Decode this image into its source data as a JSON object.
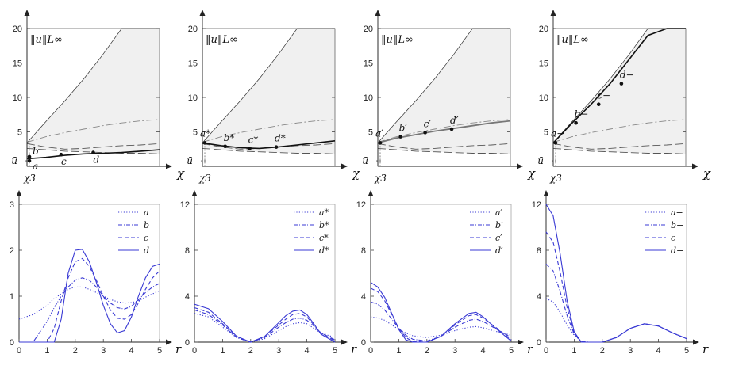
{
  "figure": {
    "top_norm_label": "‖u‖L∞",
    "chi_label": "χ",
    "chi3_label": "χ3",
    "ubar_label": "ū",
    "r_label": "r"
  },
  "chart_data": [
    {
      "type": "line",
      "panel": "top-1",
      "title": "‖u‖L∞",
      "xlabel": "χ",
      "ylim": [
        0,
        20
      ],
      "yticks": [
        5,
        10,
        15,
        20
      ],
      "tick_labels": [
        "5",
        "10",
        "15",
        "20"
      ],
      "shaded_region": "between upper and lower boundary curves",
      "x": [
        0,
        1,
        2,
        3,
        4,
        5,
        6,
        7
      ],
      "series": [
        {
          "name": "upper boundary",
          "values": [
            3.4,
            6.5,
            9.5,
            12.7,
            16.2,
            20,
            20,
            20
          ]
        },
        {
          "name": "dash-dot",
          "values": [
            3.5,
            4.3,
            4.9,
            5.4,
            5.9,
            6.3,
            6.6,
            6.8
          ]
        },
        {
          "name": "long-dash upper",
          "values": [
            3.3,
            2.8,
            2.5,
            2.6,
            2.8,
            3.0,
            3.1,
            3.3
          ]
        },
        {
          "name": "long-dash lower",
          "values": [
            2.6,
            2.4,
            2.2,
            2.1,
            2.0,
            1.9,
            1.9,
            1.8
          ]
        },
        {
          "name": "solid branch",
          "values": [
            1.1,
            1.3,
            1.6,
            1.8,
            1.9,
            2.0,
            2.2,
            2.4
          ]
        }
      ],
      "points": [
        {
          "label": "a",
          "x": 0,
          "y": 0.8
        },
        {
          "label": "b",
          "x": 0,
          "y": 1.4
        },
        {
          "label": "c",
          "x": 1.8,
          "y": 1.7
        },
        {
          "label": "d",
          "x": 3.5,
          "y": 2.0
        }
      ]
    },
    {
      "type": "line",
      "panel": "top-2",
      "title": "‖u‖L∞",
      "xlabel": "χ",
      "ylim": [
        0,
        20
      ],
      "yticks": [
        5,
        10,
        15,
        20
      ],
      "tick_labels": [
        "5",
        "10",
        "15",
        "20"
      ],
      "x": [
        0,
        1,
        2,
        3,
        4,
        5,
        6,
        7
      ],
      "series": [
        {
          "name": "upper boundary",
          "values": [
            3.4,
            6.5,
            9.5,
            12.7,
            16.2,
            20,
            20,
            20
          ]
        },
        {
          "name": "dash-dot",
          "values": [
            3.5,
            4.3,
            4.9,
            5.4,
            5.9,
            6.3,
            6.6,
            6.8
          ]
        },
        {
          "name": "long-dash upper",
          "values": [
            3.3,
            2.8,
            2.5,
            2.6,
            2.8,
            3.0,
            3.1,
            3.3
          ]
        },
        {
          "name": "long-dash lower",
          "values": [
            2.6,
            2.4,
            2.2,
            2.1,
            2.0,
            1.9,
            1.9,
            1.8
          ]
        },
        {
          "name": "solid branch",
          "values": [
            3.4,
            3.0,
            2.7,
            2.6,
            2.8,
            3.1,
            3.4,
            3.7
          ]
        }
      ],
      "points": [
        {
          "label": "a*",
          "x": 0,
          "y": 3.4
        },
        {
          "label": "b*",
          "x": 1.2,
          "y": 2.9
        },
        {
          "label": "c*",
          "x": 2.5,
          "y": 2.6
        },
        {
          "label": "d*",
          "x": 3.9,
          "y": 2.8
        }
      ]
    },
    {
      "type": "line",
      "panel": "top-3",
      "title": "‖u‖L∞",
      "xlabel": "χ",
      "ylim": [
        0,
        20
      ],
      "yticks": [
        5,
        10,
        15,
        20
      ],
      "tick_labels": [
        "5",
        "10",
        "15",
        "20"
      ],
      "x": [
        0,
        1,
        2,
        3,
        4,
        5,
        6,
        7
      ],
      "series": [
        {
          "name": "upper boundary",
          "values": [
            3.4,
            6.5,
            9.5,
            12.7,
            16.2,
            20,
            20,
            20
          ]
        },
        {
          "name": "dash-dot",
          "values": [
            3.5,
            4.3,
            4.9,
            5.4,
            5.9,
            6.3,
            6.6,
            6.8
          ]
        },
        {
          "name": "long-dash upper",
          "values": [
            3.3,
            2.8,
            2.5,
            2.6,
            2.8,
            3.0,
            3.1,
            3.3
          ]
        },
        {
          "name": "long-dash lower",
          "values": [
            2.6,
            2.4,
            2.2,
            2.1,
            2.0,
            1.9,
            1.9,
            1.8
          ]
        },
        {
          "name": "solid branch",
          "values": [
            3.4,
            4.1,
            4.6,
            5.1,
            5.5,
            5.9,
            6.3,
            6.6
          ]
        }
      ],
      "points": [
        {
          "label": "a′",
          "x": 0,
          "y": 3.4
        },
        {
          "label": "b′",
          "x": 1.2,
          "y": 4.3
        },
        {
          "label": "c′",
          "x": 2.5,
          "y": 4.9
        },
        {
          "label": "d′",
          "x": 3.9,
          "y": 5.4
        }
      ]
    },
    {
      "type": "line",
      "panel": "top-4",
      "title": "‖u‖L∞",
      "xlabel": "χ",
      "ylim": [
        0,
        20
      ],
      "yticks": [
        5,
        10,
        15,
        20
      ],
      "tick_labels": [
        "5",
        "10",
        "15",
        "20"
      ],
      "x": [
        0,
        1,
        2,
        3,
        4,
        5,
        6,
        7
      ],
      "series": [
        {
          "name": "upper boundary",
          "values": [
            3.4,
            6.5,
            9.5,
            12.7,
            16.2,
            20,
            20,
            20
          ]
        },
        {
          "name": "dash-dot",
          "values": [
            3.5,
            4.3,
            4.9,
            5.4,
            5.9,
            6.3,
            6.6,
            6.8
          ]
        },
        {
          "name": "long-dash upper",
          "values": [
            3.3,
            2.8,
            2.5,
            2.6,
            2.8,
            3.0,
            3.1,
            3.3
          ]
        },
        {
          "name": "long-dash lower",
          "values": [
            2.6,
            2.4,
            2.2,
            2.1,
            2.0,
            1.9,
            1.9,
            1.8
          ]
        },
        {
          "name": "solid branch",
          "values": [
            3.4,
            6.3,
            9.0,
            12.0,
            15.5,
            19.0,
            20,
            20
          ]
        }
      ],
      "points": [
        {
          "label": "a−",
          "x": 0,
          "y": 3.4
        },
        {
          "label": "b−",
          "x": 1.2,
          "y": 6.3
        },
        {
          "label": "c−",
          "x": 2.4,
          "y": 9.0
        },
        {
          "label": "d−",
          "x": 3.6,
          "y": 12.0
        }
      ]
    },
    {
      "type": "line",
      "panel": "bottom-1",
      "xlabel": "r",
      "xlim": [
        0,
        5
      ],
      "ylim": [
        0,
        3
      ],
      "xticks": [
        0,
        1,
        2,
        3,
        4,
        5
      ],
      "yticks": [
        0,
        1,
        2,
        3
      ],
      "legend_position": "top-right",
      "x": [
        0,
        0.5,
        1,
        1.25,
        1.5,
        1.75,
        2,
        2.25,
        2.5,
        2.75,
        3,
        3.25,
        3.5,
        3.75,
        4,
        4.25,
        4.5,
        4.75,
        5
      ],
      "series": [
        {
          "name": "a",
          "values": [
            0.5,
            0.6,
            0.8,
            0.95,
            1.05,
            1.15,
            1.2,
            1.2,
            1.15,
            1.08,
            1.0,
            0.93,
            0.88,
            0.85,
            0.86,
            0.9,
            0.98,
            1.05,
            1.12
          ]
        },
        {
          "name": "b",
          "values": [
            0,
            0,
            0.45,
            0.75,
            1.0,
            1.2,
            1.35,
            1.4,
            1.35,
            1.2,
            1.0,
            0.85,
            0.75,
            0.72,
            0.78,
            0.92,
            1.08,
            1.2,
            1.28
          ]
        },
        {
          "name": "c",
          "values": [
            0,
            0,
            0,
            0.3,
            0.9,
            1.4,
            1.75,
            1.82,
            1.65,
            1.35,
            1.0,
            0.7,
            0.52,
            0.5,
            0.6,
            0.85,
            1.15,
            1.4,
            1.55
          ]
        },
        {
          "name": "d",
          "values": [
            0,
            0,
            0,
            0,
            0.5,
            1.5,
            2.0,
            2.02,
            1.75,
            1.3,
            0.8,
            0.4,
            0.2,
            0.25,
            0.55,
            1.0,
            1.4,
            1.65,
            1.7
          ]
        }
      ]
    },
    {
      "type": "line",
      "panel": "bottom-2",
      "xlabel": "r",
      "xlim": [
        0,
        5
      ],
      "ylim": [
        0,
        12
      ],
      "xticks": [
        0,
        1,
        2,
        3,
        4,
        5
      ],
      "yticks": [
        0,
        4,
        8,
        12
      ],
      "legend_position": "top-right",
      "x": [
        0,
        0.5,
        1,
        1.5,
        2,
        2.5,
        3,
        3.25,
        3.5,
        3.75,
        4,
        4.25,
        4.5,
        5
      ],
      "series": [
        {
          "name": "a*",
          "values": [
            2.5,
            2.2,
            1.3,
            0.4,
            0.0,
            0.3,
            1.0,
            1.35,
            1.6,
            1.7,
            1.6,
            1.2,
            0.8,
            0.4
          ]
        },
        {
          "name": "b*",
          "values": [
            2.8,
            2.4,
            1.5,
            0.4,
            0.0,
            0.4,
            1.3,
            1.7,
            2.0,
            2.1,
            1.9,
            1.4,
            0.8,
            0.2
          ]
        },
        {
          "name": "c*",
          "values": [
            3.0,
            2.6,
            1.6,
            0.5,
            0.0,
            0.5,
            1.5,
            2.0,
            2.4,
            2.5,
            2.2,
            1.5,
            0.8,
            0.1
          ]
        },
        {
          "name": "d*",
          "values": [
            3.3,
            2.9,
            1.8,
            0.5,
            0.0,
            0.5,
            1.7,
            2.3,
            2.7,
            2.8,
            2.4,
            1.6,
            0.7,
            0.0
          ]
        }
      ]
    },
    {
      "type": "line",
      "panel": "bottom-3",
      "xlabel": "r",
      "xlim": [
        0,
        5
      ],
      "ylim": [
        0,
        12
      ],
      "xticks": [
        0,
        1,
        2,
        3,
        4,
        5
      ],
      "yticks": [
        0,
        4,
        8,
        12
      ],
      "legend_position": "top-right",
      "x": [
        0,
        0.25,
        0.5,
        0.75,
        1,
        1.25,
        1.5,
        2,
        2.5,
        3,
        3.5,
        3.75,
        4,
        4.5,
        5
      ],
      "series": [
        {
          "name": "a′",
          "values": [
            2.2,
            2.1,
            1.9,
            1.5,
            1.1,
            0.8,
            0.55,
            0.4,
            0.6,
            1.0,
            1.3,
            1.35,
            1.25,
            0.9,
            0.6
          ]
        },
        {
          "name": "b′",
          "values": [
            3.5,
            3.3,
            2.8,
            2.0,
            1.2,
            0.6,
            0.25,
            0.1,
            0.5,
            1.3,
            1.9,
            2.0,
            1.8,
            1.1,
            0.4
          ]
        },
        {
          "name": "c′",
          "values": [
            4.7,
            4.4,
            3.6,
            2.4,
            1.2,
            0.4,
            0.05,
            0.0,
            0.5,
            1.5,
            2.3,
            2.4,
            2.1,
            1.2,
            0.2
          ]
        },
        {
          "name": "d′",
          "values": [
            5.2,
            4.8,
            3.9,
            2.5,
            1.1,
            0.2,
            0.0,
            0.0,
            0.5,
            1.6,
            2.5,
            2.6,
            2.2,
            1.1,
            0.1
          ]
        }
      ]
    },
    {
      "type": "line",
      "panel": "bottom-4",
      "xlabel": "r",
      "xlim": [
        0,
        5
      ],
      "ylim": [
        0,
        12
      ],
      "xticks": [
        0,
        1,
        2,
        3,
        4,
        5
      ],
      "yticks": [
        0,
        4,
        8,
        12
      ],
      "legend_position": "top-right",
      "x": [
        0,
        0.25,
        0.5,
        0.75,
        1,
        1.25,
        1.5,
        2,
        2.5,
        3,
        3.5,
        4,
        4.5,
        5
      ],
      "series": [
        {
          "name": "a−",
          "values": [
            3.8,
            3.5,
            2.6,
            1.5,
            0.6,
            0.1,
            0.0,
            0.0,
            0.4,
            1.2,
            1.6,
            1.4,
            0.8,
            0.3
          ]
        },
        {
          "name": "b−",
          "values": [
            6.8,
            6.2,
            4.4,
            2.3,
            0.7,
            0.05,
            0.0,
            0.0,
            0.4,
            1.2,
            1.6,
            1.4,
            0.8,
            0.3
          ]
        },
        {
          "name": "c−",
          "values": [
            9.6,
            8.7,
            6.1,
            3.0,
            0.8,
            0.0,
            0.0,
            0.0,
            0.4,
            1.2,
            1.6,
            1.4,
            0.8,
            0.3
          ]
        },
        {
          "name": "d−",
          "values": [
            12.0,
            11.0,
            7.7,
            3.6,
            0.9,
            0.0,
            0.0,
            0.0,
            0.4,
            1.2,
            1.6,
            1.4,
            0.8,
            0.3
          ]
        }
      ]
    }
  ]
}
